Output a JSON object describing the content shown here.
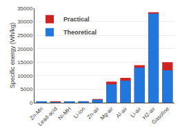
{
  "chart_data": {
    "type": "bar",
    "categories": [
      "Zn-Mn",
      "Lead-acid",
      "Ni-MH",
      "Li-ion",
      "Zn-air",
      "Mg-air",
      "Al-air",
      "Li-air",
      "H2-air",
      "Gasoline"
    ],
    "series": [
      {
        "name": "Practical",
        "color": "#CC2222",
        "values": [
          450,
          300,
          400,
          560,
          1350,
          7800,
          9200,
          13900,
          33500,
          15000
        ]
      },
      {
        "name": "Theoretical",
        "color": "#2277DD",
        "values": [
          260,
          170,
          260,
          410,
          1090,
          6800,
          8140,
          13000,
          33000,
          12000
        ]
      }
    ],
    "ylabel": "Specific energy (Wh/kg)",
    "ylim": [
      0,
      35000
    ],
    "yticks": [
      0,
      5000,
      10000,
      15000,
      20000,
      25000,
      30000,
      35000
    ],
    "grid": true,
    "legend": "upper left"
  }
}
